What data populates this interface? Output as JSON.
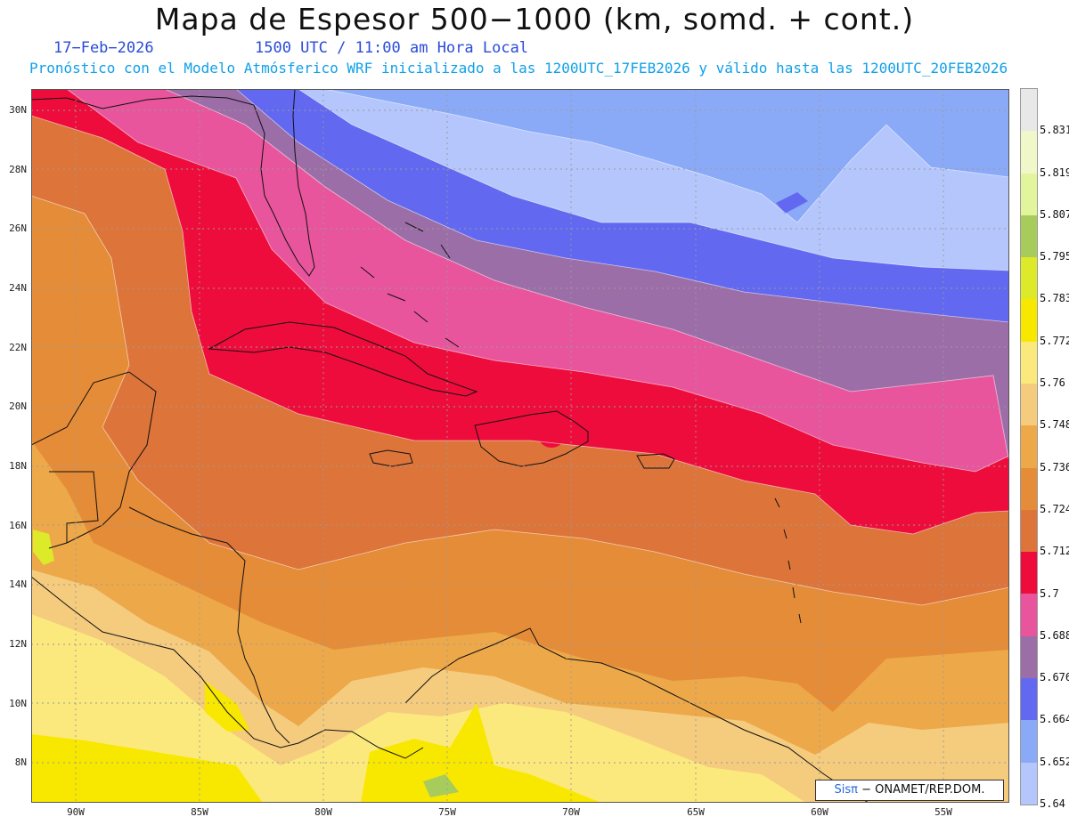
{
  "header": {
    "title": "Mapa de Espesor 500−1000 (km, somd. + cont.)",
    "date": "17−Feb−2026",
    "time": "1500 UTC / 11:00 am Hora Local",
    "forecast": "Pronóstico con el Modelo Atmósferico WRF inicializado a las 1200UTC_17FEB2026 y válido hasta las  1200UTC_20FEB2026"
  },
  "axes": {
    "lat_labels": [
      "30N",
      "28N",
      "26N",
      "24N",
      "22N",
      "20N",
      "18N",
      "16N",
      "14N",
      "12N",
      "10N",
      "8N"
    ],
    "lon_labels": [
      "90W",
      "85W",
      "80W",
      "75W",
      "70W",
      "65W",
      "60W",
      "55W"
    ]
  },
  "colorbar": {
    "values": [
      "5.831",
      "5.819",
      "5.807",
      "5.795",
      "5.783",
      "5.772",
      "5.76",
      "5.748",
      "5.736",
      "5.724",
      "5.712",
      "5.7",
      "5.688",
      "5.676",
      "5.664",
      "5.652",
      "5.64"
    ],
    "colors": [
      "#e8e8e8",
      "#f0f7c8",
      "#e2f59c",
      "#a8cc5c",
      "#dcea2a",
      "#f8e800",
      "#fbe97e",
      "#f5cb7e",
      "#eda84a",
      "#e58c38",
      "#dd743a",
      "#ee0c3c",
      "#e8559c",
      "#9c6ea8",
      "#6268f0",
      "#8aaaf8",
      "#b4c6fc"
    ]
  },
  "credit": {
    "brand": "Sisπ",
    "text": " − ONAMET/REP.DOM."
  }
}
